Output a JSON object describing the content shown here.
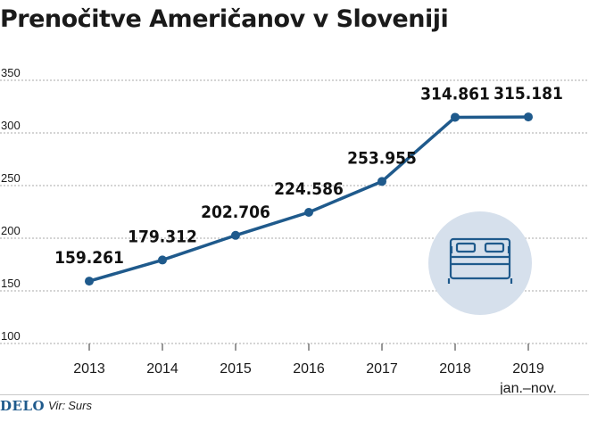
{
  "title": "Prenočitve Američanov v Sloveniji",
  "colors": {
    "line": "#1f5a8c",
    "grid": "#a9a9a9",
    "icon_bg": "#d6e0ec",
    "icon_stroke": "#1f5a8c",
    "brand": "#1f5a8c"
  },
  "chart_data": {
    "type": "line",
    "categories": [
      "2013",
      "2014",
      "2015",
      "2016",
      "2017",
      "2018",
      "2019"
    ],
    "category_sublabels": [
      "",
      "",
      "",
      "",
      "",
      "",
      "jan.–nov."
    ],
    "values": [
      159.261,
      179.312,
      202.706,
      224.586,
      253.955,
      314.861,
      315.181
    ],
    "data_labels": [
      "159.261",
      "179.312",
      "202.706",
      "224.586",
      "253.955",
      "314.861",
      "315.181"
    ],
    "y_ticks": [
      "100",
      "150",
      "200",
      "250",
      "300",
      "350"
    ],
    "ylim": [
      100,
      350
    ],
    "grid": true
  },
  "icon": "bed-icon",
  "footer": {
    "brand": "DELO",
    "source_label": "Vir:",
    "source": "Surs"
  }
}
